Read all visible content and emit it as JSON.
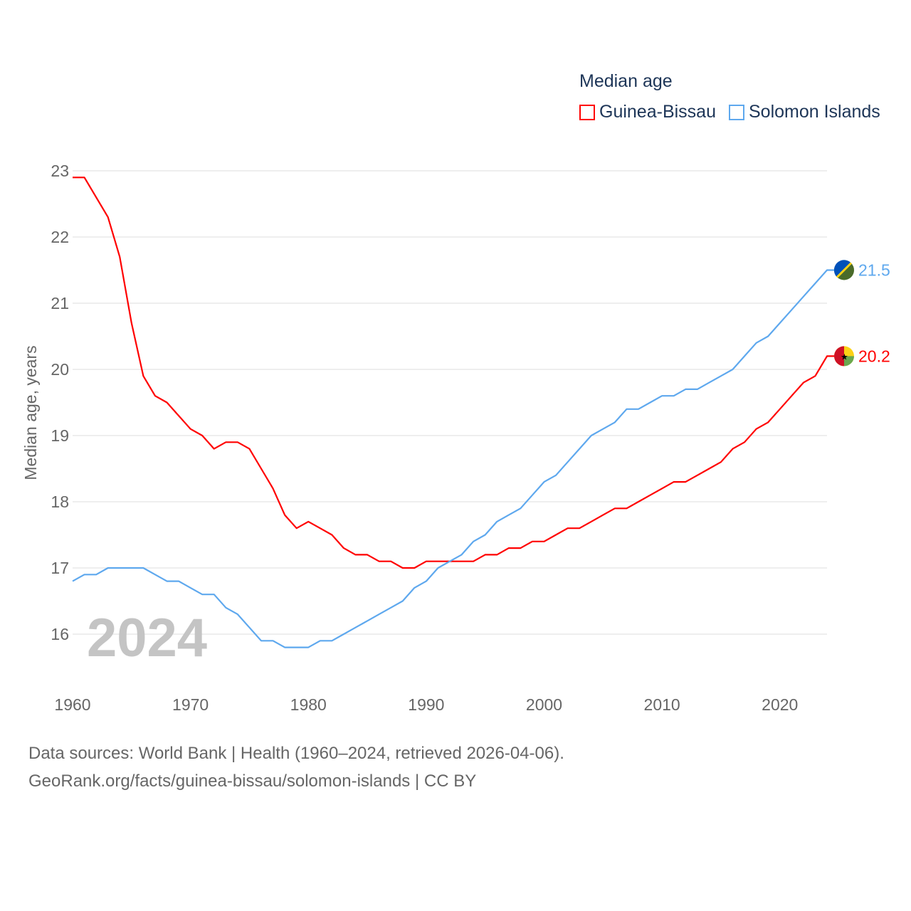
{
  "chart_data": {
    "type": "line",
    "title": "Median age",
    "xlabel": "",
    "ylabel": "Median age, years",
    "xlim": [
      1960,
      2024
    ],
    "ylim": [
      15.5,
      23
    ],
    "yticks": [
      16,
      17,
      18,
      19,
      20,
      21,
      22,
      23
    ],
    "xticks": [
      1960,
      1970,
      1980,
      1990,
      2000,
      2010,
      2020
    ],
    "grid": true,
    "legend_position": "top-right",
    "year_label": "2024",
    "x": [
      1960,
      1961,
      1962,
      1963,
      1964,
      1965,
      1966,
      1967,
      1968,
      1969,
      1970,
      1971,
      1972,
      1973,
      1974,
      1975,
      1976,
      1977,
      1978,
      1979,
      1980,
      1981,
      1982,
      1983,
      1984,
      1985,
      1986,
      1987,
      1988,
      1989,
      1990,
      1991,
      1992,
      1993,
      1994,
      1995,
      1996,
      1997,
      1998,
      1999,
      2000,
      2001,
      2002,
      2003,
      2004,
      2005,
      2006,
      2007,
      2008,
      2009,
      2010,
      2011,
      2012,
      2013,
      2014,
      2015,
      2016,
      2017,
      2018,
      2019,
      2020,
      2021,
      2022,
      2023,
      2024
    ],
    "series": [
      {
        "name": "Guinea-Bissau",
        "color": "#ff0000",
        "end_label": "20.2",
        "values": [
          22.9,
          22.9,
          22.6,
          22.3,
          21.7,
          20.7,
          19.9,
          19.6,
          19.5,
          19.3,
          19.1,
          19.0,
          18.8,
          18.9,
          18.9,
          18.8,
          18.5,
          18.2,
          17.8,
          17.6,
          17.7,
          17.6,
          17.5,
          17.3,
          17.2,
          17.2,
          17.1,
          17.1,
          17.0,
          17.0,
          17.1,
          17.1,
          17.1,
          17.1,
          17.1,
          17.2,
          17.2,
          17.3,
          17.3,
          17.4,
          17.4,
          17.5,
          17.6,
          17.6,
          17.7,
          17.8,
          17.9,
          17.9,
          18.0,
          18.1,
          18.2,
          18.3,
          18.3,
          18.4,
          18.5,
          18.6,
          18.8,
          18.9,
          19.1,
          19.2,
          19.4,
          19.6,
          19.8,
          19.9,
          20.2
        ]
      },
      {
        "name": "Solomon Islands",
        "color": "#5ea8ee",
        "end_label": "21.5",
        "values": [
          16.8,
          16.9,
          16.9,
          17.0,
          17.0,
          17.0,
          17.0,
          16.9,
          16.8,
          16.8,
          16.7,
          16.6,
          16.6,
          16.4,
          16.3,
          16.1,
          15.9,
          15.9,
          15.8,
          15.8,
          15.8,
          15.9,
          15.9,
          16.0,
          16.1,
          16.2,
          16.3,
          16.4,
          16.5,
          16.7,
          16.8,
          17.0,
          17.1,
          17.2,
          17.4,
          17.5,
          17.7,
          17.8,
          17.9,
          18.1,
          18.3,
          18.4,
          18.6,
          18.8,
          19.0,
          19.1,
          19.2,
          19.4,
          19.4,
          19.5,
          19.6,
          19.6,
          19.7,
          19.7,
          19.8,
          19.9,
          20.0,
          20.2,
          20.4,
          20.5,
          20.7,
          20.9,
          21.1,
          21.3,
          21.5
        ]
      }
    ]
  },
  "footer": {
    "line1": "Data sources: World Bank | Health (1960–2024, retrieved 2026-04-06).",
    "line2": "GeoRank.org/facts/guinea-bissau/solomon-islands | CC BY"
  }
}
